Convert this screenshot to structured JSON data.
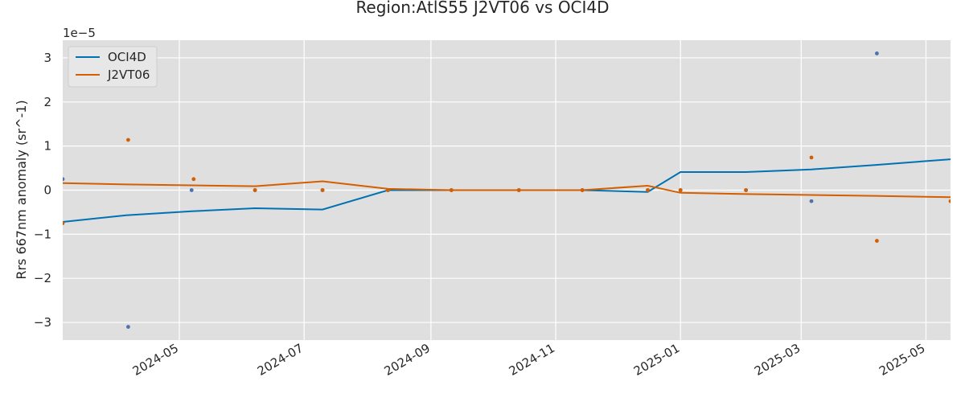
{
  "chart_data": {
    "type": "line",
    "title": "Region:AtlS55 J2VT06 vs OCI4D",
    "xlabel": "",
    "ylabel": "Rrs 667nm anomaly (sr^-1)",
    "y_offset_label": "1e−5",
    "xlim": [
      "2024-03-05",
      "2025-05-13"
    ],
    "ylim": [
      -3.4,
      3.4
    ],
    "x_ticks": [
      "2024-05-01",
      "2024-07-01",
      "2024-09-01",
      "2024-11-01",
      "2025-01-01",
      "2025-03-01",
      "2025-05-01"
    ],
    "x_tick_labels": [
      "2024-05",
      "2024-07",
      "2024-09",
      "2024-11",
      "2025-01",
      "2025-03",
      "2025-05"
    ],
    "y_ticks": [
      -3,
      -2,
      -1,
      0,
      1,
      2,
      3
    ],
    "y_tick_labels": [
      "−3",
      "−2",
      "−1",
      "0",
      "1",
      "2",
      "3"
    ],
    "grid": true,
    "legend_position": "top-left",
    "series": [
      {
        "name": "OCI4D",
        "color": "#0072b2",
        "marker_color": "#4c72b0",
        "line": {
          "x": [
            "2024-03-05",
            "2024-04-05",
            "2024-05-07",
            "2024-06-07",
            "2024-07-10",
            "2024-08-11",
            "2024-09-11",
            "2024-10-14",
            "2024-11-14",
            "2024-12-16",
            "2025-01-01",
            "2025-02-02",
            "2025-03-06",
            "2025-04-06",
            "2025-05-13"
          ],
          "y": [
            -0.72,
            -0.57,
            -0.48,
            -0.41,
            -0.44,
            0.0,
            0.0,
            0.0,
            0.0,
            -0.04,
            0.41,
            0.41,
            0.47,
            0.57,
            0.7
          ]
        },
        "points": {
          "x": [
            "2024-03-05",
            "2024-04-06",
            "2024-05-07",
            "2024-06-07",
            "2024-07-10",
            "2024-08-11",
            "2024-09-11",
            "2024-10-14",
            "2024-11-14",
            "2024-12-16",
            "2025-01-01",
            "2025-02-02",
            "2025-03-06",
            "2025-04-07"
          ],
          "y": [
            0.25,
            -3.1,
            0.0,
            0.0,
            0.0,
            0.0,
            0.0,
            0.0,
            0.0,
            0.0,
            0.0,
            0.0,
            -0.25,
            3.1
          ]
        }
      },
      {
        "name": "J2VT06",
        "color": "#d55e00",
        "marker_color": "#d55e00",
        "line": {
          "x": [
            "2024-03-05",
            "2024-04-05",
            "2024-05-07",
            "2024-06-07",
            "2024-07-10",
            "2024-08-11",
            "2024-09-11",
            "2024-10-14",
            "2024-11-14",
            "2024-12-16",
            "2025-01-01",
            "2025-02-02",
            "2025-03-06",
            "2025-04-06",
            "2025-05-13"
          ],
          "y": [
            0.16,
            0.13,
            0.11,
            0.09,
            0.2,
            0.03,
            0.0,
            0.0,
            0.0,
            0.1,
            -0.06,
            -0.09,
            -0.11,
            -0.13,
            -0.16
          ]
        },
        "points": {
          "x": [
            "2024-03-05",
            "2024-04-06",
            "2024-05-08",
            "2024-06-07",
            "2024-07-10",
            "2024-08-11",
            "2024-09-11",
            "2024-10-14",
            "2024-11-14",
            "2024-12-16",
            "2025-01-01",
            "2025-02-02",
            "2025-03-06",
            "2025-04-07",
            "2025-05-13"
          ],
          "y": [
            -0.75,
            1.14,
            0.25,
            0.0,
            0.0,
            0.0,
            0.0,
            0.0,
            0.0,
            0.0,
            0.0,
            0.0,
            0.74,
            -1.15,
            -0.25
          ]
        }
      }
    ]
  }
}
